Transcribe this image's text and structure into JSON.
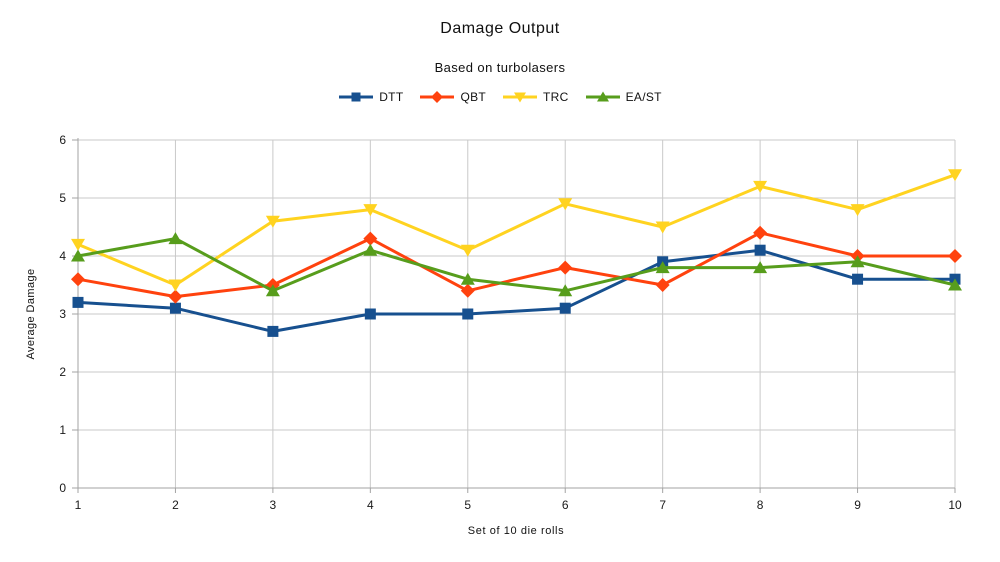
{
  "chart_data": {
    "type": "line",
    "title": "Damage Output",
    "subtitle": "Based on turbolasers",
    "xlabel": "Set of 10 die rolls",
    "ylabel": "Average Damage",
    "x": [
      1,
      2,
      3,
      4,
      5,
      6,
      7,
      8,
      9,
      10
    ],
    "ylim": [
      0,
      6
    ],
    "yticks": [
      0,
      1,
      2,
      3,
      4,
      5,
      6
    ],
    "grid": true,
    "legend_position": "top",
    "series": [
      {
        "name": "DTT",
        "marker": "square",
        "color": "#17508F",
        "values": [
          3.2,
          3.1,
          2.7,
          3.0,
          3.0,
          3.1,
          3.9,
          4.1,
          3.6,
          3.6
        ]
      },
      {
        "name": "QBT",
        "marker": "diamond",
        "color": "#FF420E",
        "values": [
          3.6,
          3.3,
          3.5,
          4.3,
          3.4,
          3.8,
          3.5,
          4.4,
          4.0,
          4.0
        ]
      },
      {
        "name": "TRC",
        "marker": "triangle-down",
        "color": "#FFD320",
        "values": [
          4.2,
          3.5,
          4.6,
          4.8,
          4.1,
          4.9,
          4.5,
          5.2,
          4.8,
          5.4
        ]
      },
      {
        "name": "EA/ST",
        "marker": "triangle-up",
        "color": "#579D1C",
        "values": [
          4.0,
          4.3,
          3.4,
          4.1,
          3.6,
          3.4,
          3.8,
          3.8,
          3.9,
          3.5
        ]
      }
    ],
    "colors": {
      "gridline": "#C9C9C9",
      "axis": "#A3A3A3",
      "tick_text": "#1A1A1A"
    }
  }
}
